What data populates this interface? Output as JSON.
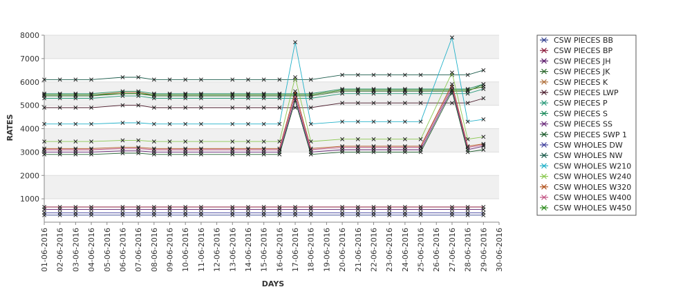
{
  "chart_data": {
    "type": "line",
    "title": "",
    "xlabel": "DAYS",
    "ylabel": "RATES",
    "ylim": [
      0,
      8000
    ],
    "yticks": [
      1000,
      2000,
      3000,
      4000,
      5000,
      6000,
      7000,
      8000
    ],
    "x": [
      "01-06-2016",
      "02-06-2016",
      "03-06-2016",
      "04-06-2016",
      "05-06-2016",
      "06-06-2016",
      "07-06-2016",
      "08-06-2016",
      "09-06-2016",
      "10-06-2016",
      "11-06-2016",
      "12-06-2016",
      "13-06-2016",
      "14-06-2016",
      "15-06-2016",
      "16-06-2016",
      "17-06-2016",
      "18-06-2016",
      "19-06-2016",
      "20-06-2016",
      "21-06-2016",
      "22-06-2016",
      "23-06-2016",
      "24-06-2016",
      "25-06-2016",
      "26-06-2016",
      "27-06-2016",
      "28-06-2016",
      "29-06-2016",
      "30-06-2016"
    ],
    "grid": true,
    "legend": "right",
    "series": [
      {
        "name": "CSW PIECES BB",
        "color": "#2b3a8c",
        "values": [
          300,
          300,
          300,
          300,
          null,
          300,
          300,
          300,
          300,
          300,
          300,
          null,
          300,
          300,
          300,
          300,
          300,
          300,
          null,
          300,
          300,
          300,
          300,
          300,
          300,
          null,
          300,
          300,
          300,
          null
        ]
      },
      {
        "name": "CSW PIECES BP",
        "color": "#8b1a3a",
        "values": [
          650,
          650,
          650,
          650,
          null,
          650,
          650,
          650,
          650,
          650,
          650,
          null,
          650,
          650,
          650,
          650,
          650,
          650,
          null,
          650,
          650,
          650,
          650,
          650,
          650,
          null,
          650,
          650,
          650,
          null
        ]
      },
      {
        "name": "CSW PIECES JH",
        "color": "#5a1a6a",
        "values": [
          550,
          550,
          550,
          550,
          null,
          550,
          550,
          550,
          550,
          550,
          550,
          null,
          550,
          550,
          550,
          550,
          550,
          550,
          null,
          550,
          550,
          550,
          550,
          550,
          550,
          null,
          550,
          550,
          550,
          null
        ]
      },
      {
        "name": "CSW PIECES JK",
        "color": "#2f6a2f",
        "values": [
          5400,
          5400,
          5400,
          5400,
          null,
          5500,
          5500,
          5400,
          5400,
          5400,
          5400,
          null,
          5400,
          5400,
          5400,
          5400,
          5400,
          5400,
          null,
          5600,
          5600,
          5600,
          5600,
          5600,
          5600,
          null,
          5600,
          5600,
          5900,
          null
        ]
      },
      {
        "name": "CSW PIECES K",
        "color": "#b0703a",
        "values": [
          5450,
          5450,
          5450,
          5450,
          null,
          5550,
          5550,
          5450,
          5450,
          5450,
          5450,
          null,
          5450,
          5450,
          5450,
          5450,
          5450,
          5450,
          null,
          5650,
          5650,
          5650,
          5650,
          5650,
          5650,
          null,
          5650,
          5650,
          5800,
          null
        ]
      },
      {
        "name": "CSW PIECES LWP",
        "color": "#4a1a2a",
        "values": [
          4900,
          4900,
          4900,
          4900,
          null,
          5000,
          5000,
          4900,
          4900,
          4900,
          4900,
          null,
          4900,
          4900,
          4900,
          4900,
          4900,
          4900,
          null,
          5100,
          5100,
          5100,
          5100,
          5100,
          5100,
          null,
          5100,
          5100,
          5300,
          null
        ]
      },
      {
        "name": "CSW PIECES P",
        "color": "#2a9a7a",
        "values": [
          5300,
          5300,
          5300,
          5300,
          null,
          5400,
          5400,
          5300,
          5300,
          5300,
          5300,
          null,
          5300,
          5300,
          5300,
          5300,
          5300,
          5300,
          null,
          5500,
          5500,
          5500,
          5500,
          5500,
          5500,
          null,
          5500,
          5500,
          5700,
          null
        ]
      },
      {
        "name": "CSW PIECES S",
        "color": "#1a8a5a",
        "values": [
          5500,
          5500,
          5500,
          5500,
          null,
          5600,
          5600,
          5500,
          5500,
          5500,
          5500,
          null,
          5500,
          5500,
          5500,
          5500,
          5500,
          5500,
          null,
          5700,
          5700,
          5700,
          5700,
          5700,
          5700,
          null,
          5700,
          5700,
          5900,
          null
        ]
      },
      {
        "name": "CSW PIECES SS",
        "color": "#6a2a7a",
        "values": [
          3000,
          3000,
          3000,
          3000,
          null,
          3050,
          3050,
          3000,
          3000,
          3000,
          3000,
          null,
          3000,
          3000,
          3000,
          3000,
          5300,
          3000,
          null,
          3100,
          3100,
          3100,
          3100,
          3100,
          3100,
          null,
          5700,
          3100,
          3250,
          null
        ]
      },
      {
        "name": "CSW PIECES SWP 1",
        "color": "#1a5a2a",
        "values": [
          2900,
          2900,
          2900,
          2900,
          null,
          2950,
          2950,
          2900,
          2900,
          2900,
          2900,
          null,
          2900,
          2900,
          2900,
          2900,
          5200,
          2900,
          null,
          3000,
          3000,
          3000,
          3000,
          3000,
          3000,
          null,
          5600,
          3000,
          3100,
          null
        ]
      },
      {
        "name": "CSW WHOLES DW",
        "color": "#3a3a9a",
        "values": [
          400,
          400,
          400,
          400,
          null,
          400,
          400,
          400,
          400,
          400,
          400,
          null,
          400,
          400,
          400,
          400,
          400,
          400,
          null,
          400,
          400,
          400,
          400,
          400,
          400,
          null,
          400,
          400,
          400,
          null
        ]
      },
      {
        "name": "CSW WHOLES NW",
        "color": "#1a5a4a",
        "values": [
          6100,
          6100,
          6100,
          6100,
          null,
          6200,
          6200,
          6100,
          6100,
          6100,
          6100,
          null,
          6100,
          6100,
          6100,
          6100,
          6100,
          6100,
          null,
          6300,
          6300,
          6300,
          6300,
          6300,
          6300,
          null,
          6300,
          6300,
          6500,
          null
        ]
      },
      {
        "name": "CSW WHOLES W210",
        "color": "#20b0c8",
        "values": [
          4200,
          4200,
          4200,
          4200,
          null,
          4250,
          4250,
          4200,
          4200,
          4200,
          4200,
          null,
          4200,
          4200,
          4200,
          4200,
          7700,
          4200,
          null,
          4300,
          4300,
          4300,
          4300,
          4300,
          4300,
          null,
          7900,
          4300,
          4400,
          null
        ]
      },
      {
        "name": "CSW WHOLES W240",
        "color": "#8ac850",
        "values": [
          3450,
          3450,
          3450,
          3450,
          null,
          3500,
          3500,
          3450,
          3450,
          3450,
          3450,
          null,
          3450,
          3450,
          3450,
          3450,
          6200,
          3450,
          null,
          3550,
          3550,
          3550,
          3550,
          3550,
          3550,
          null,
          6400,
          3550,
          3650,
          null
        ]
      },
      {
        "name": "CSW WHOLES W320",
        "color": "#b0501a",
        "values": [
          3150,
          3150,
          3150,
          3150,
          null,
          3200,
          3200,
          3150,
          3150,
          3150,
          3150,
          null,
          3150,
          3150,
          3150,
          3150,
          5600,
          3150,
          null,
          3250,
          3250,
          3250,
          3250,
          3250,
          3250,
          null,
          5900,
          3250,
          3350,
          null
        ]
      },
      {
        "name": "CSW WHOLES W400",
        "color": "#c05080",
        "values": [
          3100,
          3100,
          3100,
          3100,
          null,
          3150,
          3150,
          3100,
          3100,
          3100,
          3100,
          null,
          3100,
          3100,
          3100,
          3100,
          5450,
          3100,
          null,
          3200,
          3200,
          3200,
          3200,
          3200,
          3200,
          null,
          5800,
          3200,
          3300,
          null
        ]
      },
      {
        "name": "CSW WHOLES W450",
        "color": "#2a8a1a",
        "values": [
          5450,
          5450,
          5450,
          5450,
          null,
          5500,
          5500,
          5450,
          5450,
          5450,
          5450,
          null,
          5450,
          5450,
          5450,
          5450,
          5450,
          5450,
          null,
          5650,
          5650,
          5650,
          5650,
          5650,
          5650,
          null,
          5650,
          5650,
          5800,
          null
        ]
      }
    ]
  }
}
